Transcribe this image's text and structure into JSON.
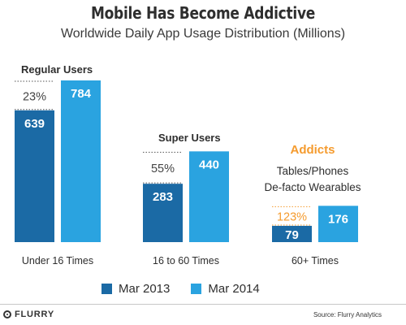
{
  "title": "Mobile Has Become Addictive",
  "subtitle": "Worldwide Daily App Usage Distribution (Millions)",
  "chart_data": {
    "type": "bar",
    "categories": [
      "Under 16 Times",
      "16 to 60 Times",
      "60+ Times"
    ],
    "series": [
      {
        "name": "Mar 2013",
        "values": [
          639,
          283,
          79
        ],
        "color": "#1b6aa5"
      },
      {
        "name": "Mar 2014",
        "values": [
          784,
          440,
          176
        ],
        "color": "#2aa3e0"
      }
    ],
    "growth_labels": [
      "23%",
      "55%",
      "123%"
    ],
    "group_titles": [
      "Regular Users",
      "Super Users",
      "Addicts"
    ],
    "addicts_note": [
      "Tables/Phones",
      "De-facto Wearables"
    ],
    "accent_color": "#f59b2e",
    "ylim": [
      0,
      820
    ],
    "grid": false,
    "legend_position": "bottom"
  },
  "footer": {
    "brand": "FLURRY",
    "source": "Source: Flurry Analytics"
  }
}
